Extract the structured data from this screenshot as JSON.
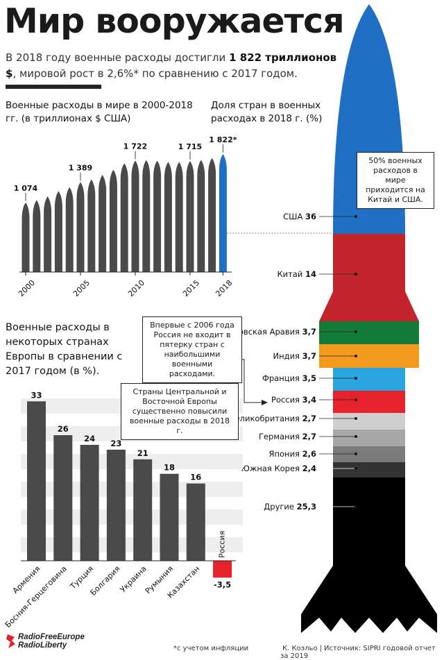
{
  "header": {
    "title": "Мир вооружается",
    "subtitle_1": "В 2018 году военные расходы достигли",
    "subtitle_bold": "1 822 триллионов $",
    "subtitle_2": ", мировой рост в 2,6%* по сравнению с 2017 годом."
  },
  "footer": {
    "note": "*с учетом инфляции",
    "author": "К. Коэльо",
    "source": "Источник: SIPRI годовой отчет за 2019",
    "logo_line1": "RadioFreeEurope",
    "logo_line2": "RadioLiberty"
  },
  "callouts": {
    "usa_china": "50% военных расходов в мире приходится на Китай и США.",
    "russia": "Впервые с 2006 года Россия не входит в пятерку стран с наибольшими военными расходами.",
    "europe": "Страны Центральной и Восточной Европы существенно повысили военные расходы в 2018 г."
  },
  "colors": {
    "dark_gray": "#4a4a4a",
    "accent_blue": "#1f6fc4",
    "red": "#e6222a"
  },
  "chart_data": [
    {
      "type": "bar",
      "title": "Военные расходы в мире в 2000-2018 гг. (в триллионах $ США)",
      "categories": [
        "2000",
        "2001",
        "2002",
        "2003",
        "2004",
        "2005",
        "2006",
        "2007",
        "2008",
        "2009",
        "2010",
        "2011",
        "2012",
        "2013",
        "2014",
        "2015",
        "2016",
        "2017",
        "2018"
      ],
      "values": [
        1074,
        1110,
        1170,
        1250,
        1310,
        1389,
        1430,
        1500,
        1580,
        1680,
        1722,
        1730,
        1720,
        1700,
        1700,
        1715,
        1730,
        1760,
        1822
      ],
      "value_labels": {
        "0": "1 074",
        "5": "1 389",
        "10": "1 722",
        "15": "1 715",
        "18": "1 822*"
      },
      "tick_labels": [
        "2000",
        "2005",
        "2010",
        "2015",
        "2018"
      ],
      "tick_indices": [
        0,
        5,
        10,
        15,
        18
      ],
      "ylim": [
        0,
        1850
      ],
      "highlight_index": 18,
      "grid": false
    },
    {
      "type": "bar",
      "title": "Доля стран в военных расходах в 2018 г. (%)",
      "categories": [
        "США",
        "Китай",
        "Саудовская Аравия",
        "Индия",
        "Франция",
        "Россия",
        "Великобритания",
        "Германия",
        "Япония",
        "Южная Корея",
        "Другие"
      ],
      "values": [
        36,
        14,
        3.7,
        3.7,
        3.5,
        3.4,
        2.7,
        2.7,
        2.6,
        2.4,
        25.3
      ],
      "value_labels": [
        "36",
        "14",
        "3,7",
        "3,7",
        "3,5",
        "3,4",
        "2,7",
        "2,7",
        "2,6",
        "2,4",
        "25,3"
      ],
      "colors": [
        "#1f6fc4",
        "#c4252d",
        "#157b3a",
        "#f39a1e",
        "#2aa5e0",
        "#e6222a",
        "#cfcfcf",
        "#a7a7a7",
        "#7b7b7b",
        "#333333",
        "#000000"
      ]
    },
    {
      "type": "bar",
      "title": "Военные расходы в некоторых странах Европы в сравнении с 2017 годом (в %).",
      "categories": [
        "Армения",
        "Босния-Герцеговина",
        "Турция",
        "Болгария",
        "Украина",
        "Румыния",
        "Казахстан",
        "Россия"
      ],
      "values": [
        33,
        26,
        24,
        23,
        21,
        18,
        16,
        -3.5
      ],
      "value_labels": [
        "33",
        "26",
        "24",
        "23",
        "21",
        "18",
        "16",
        "-3,5"
      ],
      "ylim": [
        -5,
        35
      ],
      "grid": true
    }
  ]
}
